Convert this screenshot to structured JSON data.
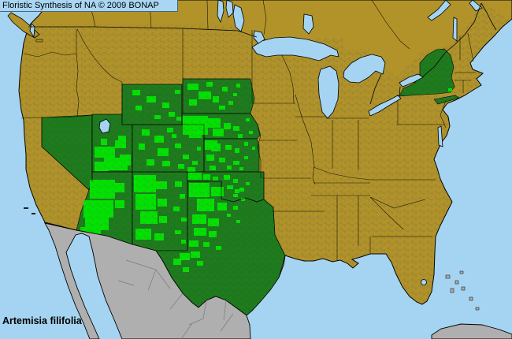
{
  "header": {
    "title": "Floristic Synthesis of NA © 2009 BONAP"
  },
  "footer": {
    "species_label": "Artemisia filifolia"
  },
  "map": {
    "colors": {
      "ocean": "#A4D4F1",
      "header_band_bg": "#A9D6F2",
      "state_absent": "#B19329",
      "state_present": "#1B7B1B",
      "county_present": "#00E400",
      "outside_coverage": "#AFAFAF",
      "border": "#000000",
      "county_line": "#5F5F52",
      "gray_border": "#7A7A7A",
      "text_color": "#000000"
    },
    "states_dark_green_present": [
      "Nevada",
      "Utah",
      "Arizona",
      "New Mexico",
      "Colorado",
      "Wyoming",
      "South Dakota",
      "Nebraska",
      "Kansas",
      "Oklahoma",
      "Texas",
      "New York"
    ],
    "bright_green_county_concentrations": [
      "Utah",
      "Arizona",
      "western New Mexico",
      "eastern Colorado",
      "Wyoming",
      "western South Dakota",
      "Nebraska Sandhills",
      "western Kansas",
      "Oklahoma panhandle",
      "Texas panhandle and Trans-Pecos",
      "one county in southeastern New York"
    ],
    "gray_outside_coverage": [
      "Mexico",
      "Baja California",
      "Cuba",
      "Bahamas"
    ],
    "county_blobs": [
      [
        150,
        172,
        10,
        9
      ],
      [
        128,
        176,
        8,
        8
      ],
      [
        120,
        186,
        26,
        14
      ],
      [
        146,
        178,
        14,
        10
      ],
      [
        132,
        200,
        30,
        16
      ],
      [
        120,
        205,
        18,
        12
      ],
      [
        152,
        196,
        14,
        14
      ],
      [
        114,
        228,
        32,
        24
      ],
      [
        106,
        254,
        38,
        22
      ],
      [
        108,
        276,
        30,
        16
      ],
      [
        102,
        288,
        26,
        9
      ],
      [
        144,
        232,
        14,
        12
      ],
      [
        146,
        254,
        12,
        10
      ],
      [
        170,
        222,
        28,
        22
      ],
      [
        172,
        246,
        26,
        20
      ],
      [
        178,
        268,
        22,
        16
      ],
      [
        172,
        290,
        20,
        14
      ],
      [
        198,
        230,
        14,
        10
      ],
      [
        200,
        252,
        12,
        10
      ],
      [
        202,
        274,
        10,
        9
      ],
      [
        196,
        296,
        12,
        9
      ],
      [
        222,
        230,
        9,
        7
      ],
      [
        228,
        246,
        7,
        6
      ],
      [
        220,
        262,
        8,
        6
      ],
      [
        230,
        276,
        7,
        5
      ],
      [
        222,
        292,
        8,
        5
      ],
      [
        230,
        304,
        6,
        5
      ],
      [
        180,
        164,
        10,
        8
      ],
      [
        196,
        172,
        12,
        9
      ],
      [
        212,
        162,
        8,
        6
      ],
      [
        176,
        182,
        8,
        8
      ],
      [
        200,
        188,
        14,
        10
      ],
      [
        222,
        182,
        8,
        6
      ],
      [
        232,
        196,
        8,
        6
      ],
      [
        186,
        202,
        10,
        8
      ],
      [
        206,
        204,
        10,
        7
      ],
      [
        226,
        208,
        8,
        6
      ],
      [
        244,
        204,
        7,
        5
      ],
      [
        240,
        170,
        6,
        5
      ],
      [
        250,
        186,
        5,
        5
      ],
      [
        218,
        170,
        6,
        5
      ],
      [
        238,
        212,
        10,
        6
      ],
      [
        168,
        114,
        10,
        7
      ],
      [
        186,
        122,
        12,
        8
      ],
      [
        206,
        130,
        9,
        7
      ],
      [
        172,
        134,
        8,
        6
      ],
      [
        214,
        142,
        8,
        6
      ],
      [
        196,
        146,
        8,
        5
      ],
      [
        222,
        114,
        7,
        5
      ],
      [
        224,
        148,
        6,
        5
      ],
      [
        238,
        106,
        14,
        8
      ],
      [
        252,
        116,
        16,
        10
      ],
      [
        240,
        126,
        10,
        8
      ],
      [
        262,
        104,
        8,
        6
      ],
      [
        270,
        122,
        8,
        8
      ],
      [
        282,
        110,
        7,
        6
      ],
      [
        290,
        128,
        6,
        5
      ],
      [
        300,
        106,
        5,
        5
      ],
      [
        278,
        134,
        8,
        5
      ],
      [
        296,
        118,
        5,
        4
      ],
      [
        232,
        147,
        32,
        24
      ],
      [
        262,
        150,
        18,
        12
      ],
      [
        270,
        163,
        14,
        10
      ],
      [
        284,
        156,
        9,
        8
      ],
      [
        296,
        160,
        8,
        6
      ],
      [
        302,
        170,
        6,
        5
      ],
      [
        240,
        168,
        16,
        7
      ],
      [
        312,
        150,
        5,
        4
      ],
      [
        316,
        166,
        5,
        4
      ],
      [
        260,
        178,
        16,
        12
      ],
      [
        268,
        182,
        12,
        10
      ],
      [
        286,
        184,
        8,
        6
      ],
      [
        298,
        188,
        6,
        6
      ],
      [
        310,
        180,
        5,
        5
      ],
      [
        262,
        196,
        10,
        8
      ],
      [
        278,
        200,
        8,
        6
      ],
      [
        296,
        204,
        8,
        5
      ],
      [
        310,
        198,
        5,
        4
      ],
      [
        266,
        210,
        8,
        6
      ],
      [
        288,
        210,
        6,
        5
      ],
      [
        304,
        212,
        5,
        4
      ],
      [
        320,
        186,
        4,
        4
      ],
      [
        238,
        219,
        18,
        9
      ],
      [
        258,
        221,
        9,
        7
      ],
      [
        270,
        224,
        7,
        5
      ],
      [
        284,
        222,
        8,
        6
      ],
      [
        296,
        227,
        6,
        5
      ],
      [
        288,
        235,
        8,
        5
      ],
      [
        304,
        238,
        6,
        5
      ],
      [
        296,
        246,
        6,
        4
      ],
      [
        312,
        231,
        5,
        4
      ],
      [
        240,
        232,
        26,
        18
      ],
      [
        268,
        237,
        16,
        12
      ],
      [
        250,
        252,
        22,
        16
      ],
      [
        276,
        257,
        12,
        10
      ],
      [
        244,
        272,
        18,
        12
      ],
      [
        264,
        277,
        14,
        10
      ],
      [
        246,
        289,
        16,
        10
      ],
      [
        265,
        293,
        10,
        8
      ],
      [
        240,
        305,
        12,
        8
      ],
      [
        258,
        307,
        8,
        6
      ],
      [
        228,
        321,
        13,
        9
      ],
      [
        242,
        319,
        12,
        8
      ],
      [
        220,
        328,
        10,
        8
      ],
      [
        250,
        331,
        8,
        6
      ],
      [
        232,
        339,
        8,
        6
      ],
      [
        298,
        240,
        6,
        5
      ],
      [
        306,
        251,
        5,
        4
      ],
      [
        296,
        261,
        6,
        5
      ],
      [
        288,
        271,
        5,
        4
      ],
      [
        300,
        279,
        5,
        4
      ],
      [
        274,
        312,
        7,
        5
      ],
      [
        569,
        112,
        5,
        4
      ]
    ]
  }
}
